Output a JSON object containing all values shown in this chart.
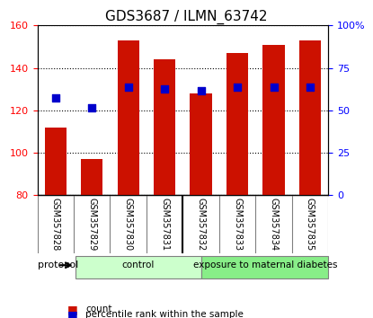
{
  "title": "GDS3687 / ILMN_63742",
  "samples": [
    "GSM357828",
    "GSM357829",
    "GSM357830",
    "GSM357831",
    "GSM357832",
    "GSM357833",
    "GSM357834",
    "GSM357835"
  ],
  "count_values": [
    112,
    97,
    153,
    144,
    128,
    147,
    151,
    153
  ],
  "percentile_values": [
    126,
    121,
    131,
    130,
    129,
    131,
    131,
    131
  ],
  "bar_color": "#cc1100",
  "dot_color": "#0000cc",
  "ylim_left": [
    80,
    160
  ],
  "ylim_right": [
    0,
    100
  ],
  "yticks_left": [
    80,
    100,
    120,
    140,
    160
  ],
  "yticks_right": [
    0,
    25,
    50,
    75,
    100
  ],
  "ytick_labels_right": [
    "0",
    "25",
    "50",
    "75",
    "100%"
  ],
  "groups": [
    {
      "label": "control",
      "indices": [
        0,
        1,
        2,
        3
      ],
      "color": "#ccffcc"
    },
    {
      "label": "exposure to maternal diabetes",
      "indices": [
        4,
        5,
        6,
        7
      ],
      "color": "#88ee88"
    }
  ],
  "protocol_label": "protocol",
  "legend_items": [
    {
      "color": "#cc1100",
      "label": "count"
    },
    {
      "color": "#0000cc",
      "label": "percentile rank within the sample"
    }
  ],
  "bar_width": 0.6,
  "grid_color": "#000000",
  "bg_color": "#ffffff",
  "plot_bg_color": "#ffffff",
  "xlabel_area_bg": "#cccccc"
}
